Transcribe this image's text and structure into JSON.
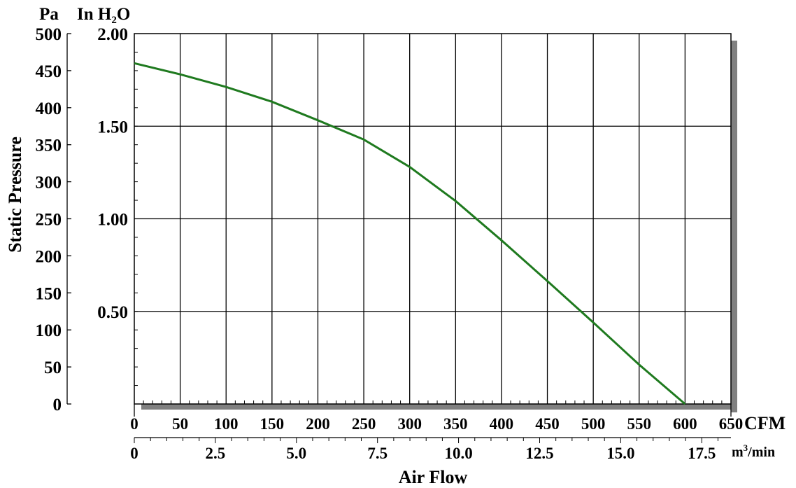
{
  "chart_data": {
    "type": "line",
    "ylabel": "Static Pressure",
    "xlabel": "Air Flow",
    "y_unit_pa": "Pa",
    "y_unit_inh2o_main": "In H",
    "y_unit_inh2o_sub": "2",
    "y_unit_inh2o_end": "O",
    "x_unit_cfm": "CFM",
    "x_unit_m3_main": "m",
    "x_unit_m3_sup": "3",
    "x_unit_m3_end": "/min",
    "xlim_cfm": [
      0,
      650
    ],
    "ylim_pa": [
      0,
      500
    ],
    "ylim_inh2o": [
      0,
      2.0
    ],
    "xlim_m3min": [
      0,
      18.4
    ],
    "cfm_ticks": [
      "0",
      "50",
      "100",
      "150",
      "200",
      "250",
      "300",
      "350",
      "400",
      "450",
      "500",
      "550",
      "600",
      "650"
    ],
    "m3_ticks": [
      "0",
      "2.5",
      "5.0",
      "7.5",
      "10.0",
      "12.5",
      "15.0",
      "17.5"
    ],
    "pa_ticks": [
      "0",
      "50",
      "100",
      "150",
      "200",
      "250",
      "300",
      "350",
      "400",
      "450",
      "500"
    ],
    "inh2o_ticks": [
      "0.50",
      "1.00",
      "1.50",
      "2.00"
    ],
    "grid": true,
    "series": [
      {
        "color": "#1f7a1f",
        "x": [
          0,
          50,
          100,
          150,
          200,
          250,
          300,
          350,
          400,
          450,
          500,
          550,
          600
        ],
        "y": [
          460,
          445,
          428,
          408,
          383,
          357,
          320,
          274,
          221,
          166,
          110,
          53,
          0
        ]
      }
    ]
  }
}
